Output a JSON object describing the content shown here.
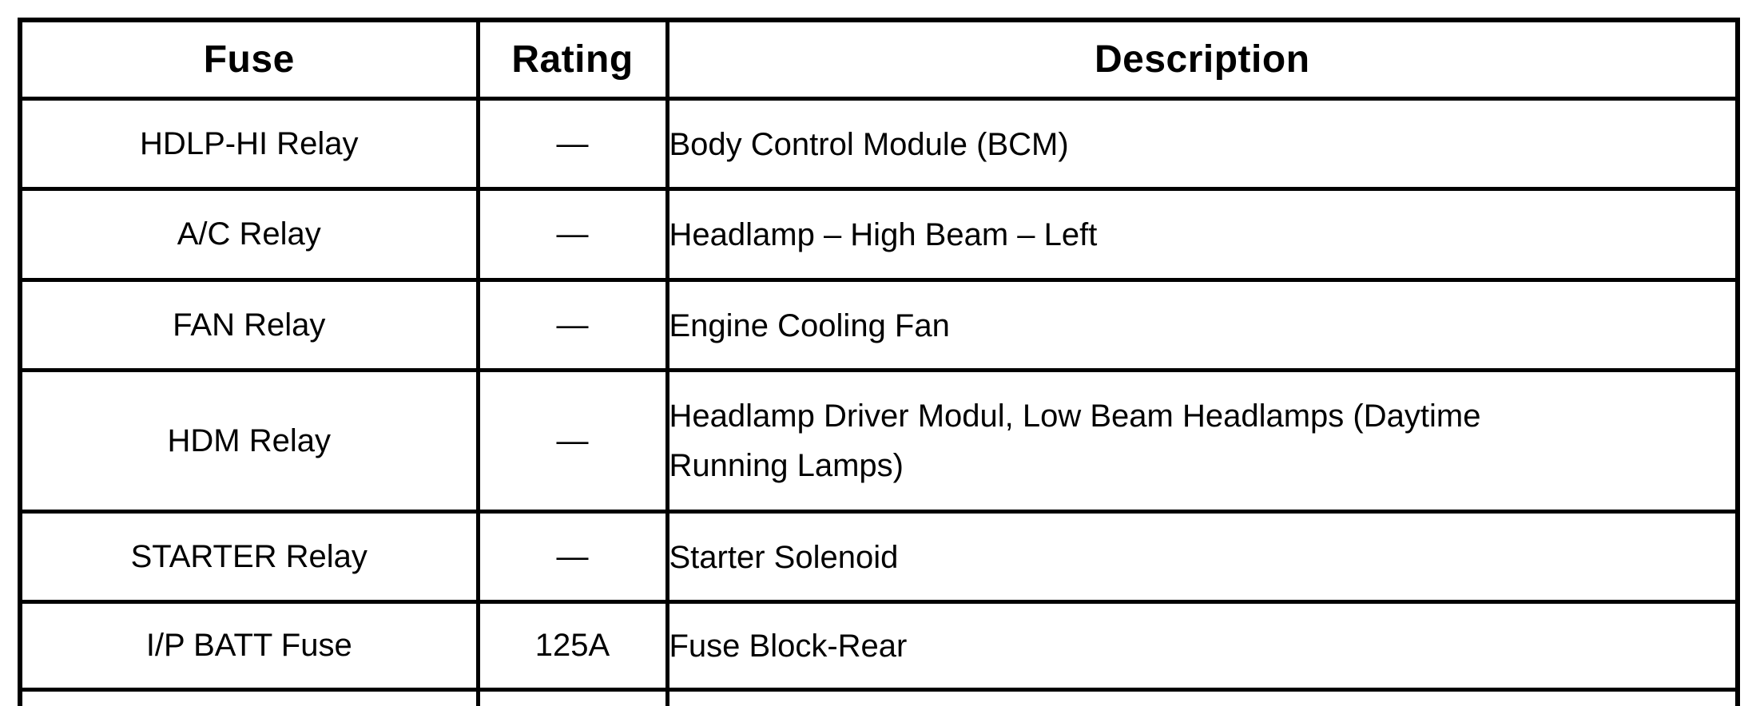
{
  "table": {
    "columns": {
      "fuse": "Fuse",
      "rating": "Rating",
      "description": "Description"
    },
    "rows": [
      {
        "fuse": "HDLP-HI Relay",
        "rating": "—",
        "description": "Body Control Module (BCM)"
      },
      {
        "fuse": "A/C Relay",
        "rating": "—",
        "description": "Headlamp – High Beam – Left"
      },
      {
        "fuse": "FAN Relay",
        "rating": "—",
        "description": "Engine Cooling Fan"
      },
      {
        "fuse": "HDM Relay",
        "rating": "—",
        "description": "Headlamp Driver Modul, Low Beam Headlamps (Daytime Running Lamps)"
      },
      {
        "fuse": "STARTER Relay",
        "rating": "—",
        "description": "Starter Solenoid"
      },
      {
        "fuse": "I/P BATT Fuse",
        "rating": "125A",
        "description": "Fuse Block-Rear"
      }
    ]
  }
}
